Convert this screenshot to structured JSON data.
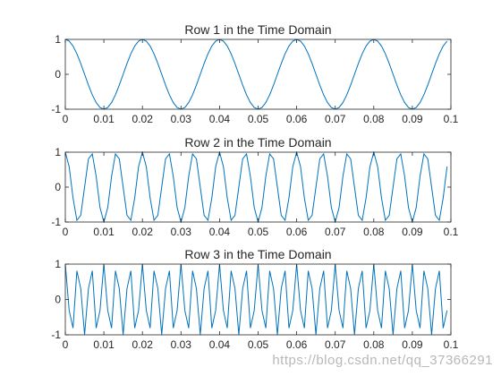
{
  "chart_data": [
    {
      "type": "line",
      "title": "Row 1 in the Time Domain",
      "xlabel": "",
      "ylabel": "",
      "xlim": [
        0,
        0.1
      ],
      "ylim": [
        -1,
        1
      ],
      "xticks": [
        "0",
        "0.01",
        "0.02",
        "0.03",
        "0.04",
        "0.05",
        "0.06",
        "0.07",
        "0.08",
        "0.09",
        "0.1"
      ],
      "yticks": [
        "-1",
        "0",
        "1"
      ],
      "grid": false,
      "sample_step": 0.001,
      "x_start": 0,
      "x_end": 0.099,
      "series": [
        {
          "frequency_hz": 50,
          "amplitude": 1,
          "waveform": "cosine"
        }
      ]
    },
    {
      "type": "line",
      "title": "Row 2 in the Time Domain",
      "xlabel": "",
      "ylabel": "",
      "xlim": [
        0,
        0.1
      ],
      "ylim": [
        -1,
        1
      ],
      "xticks": [
        "0",
        "0.01",
        "0.02",
        "0.03",
        "0.04",
        "0.05",
        "0.06",
        "0.07",
        "0.08",
        "0.09",
        "0.1"
      ],
      "yticks": [
        "-1",
        "0",
        "1"
      ],
      "grid": false,
      "sample_step": 0.001,
      "x_start": 0,
      "x_end": 0.099,
      "series": [
        {
          "frequency_hz": 150,
          "amplitude": 1,
          "waveform": "cosine"
        }
      ]
    },
    {
      "type": "line",
      "title": "Row 3 in the Time Domain",
      "xlabel": "",
      "ylabel": "",
      "xlim": [
        0,
        0.1
      ],
      "ylim": [
        -1,
        1
      ],
      "xticks": [
        "0",
        "0.01",
        "0.02",
        "0.03",
        "0.04",
        "0.05",
        "0.06",
        "0.07",
        "0.08",
        "0.09",
        "0.1"
      ],
      "yticks": [
        "-1",
        "0",
        "1"
      ],
      "grid": false,
      "sample_step": 0.001,
      "x_start": 0,
      "x_end": 0.099,
      "series": [
        {
          "frequency_hz": 300,
          "amplitude": 1,
          "waveform": "cosine"
        }
      ]
    }
  ],
  "watermark": "https://blog.csdn.net/qq_37366291",
  "colors": {
    "line": "#0072bd",
    "axes": "#262626",
    "background": "#ffffff"
  }
}
